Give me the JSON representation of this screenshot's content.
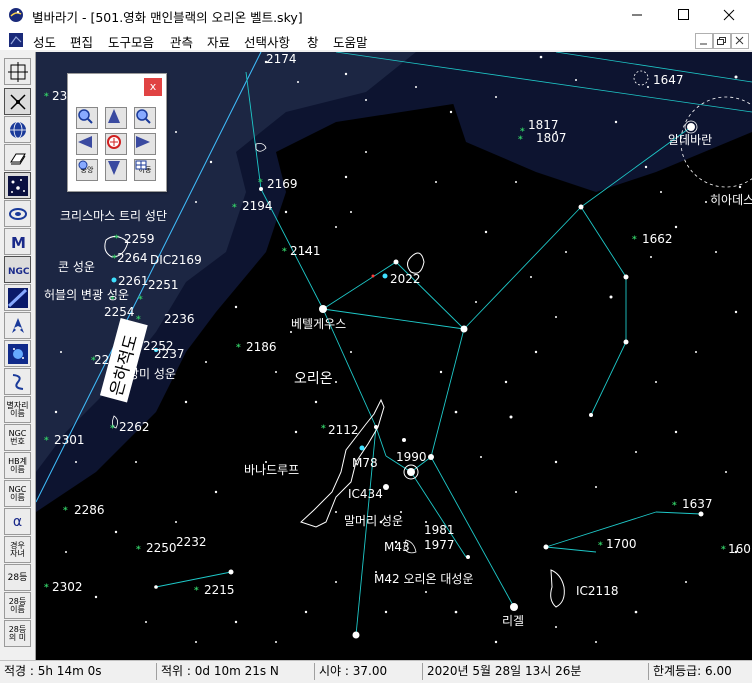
{
  "window": {
    "title": "별바라기 - [501.영화 맨인블랙의 오리온 벨트.sky]"
  },
  "menu": [
    "성도",
    "편집",
    "도구모음",
    "관측",
    "자료",
    "선택사항",
    "창",
    "도움말"
  ],
  "toolbar": {
    "star_name": "별자리\n이름",
    "ngc_number": "NGC\n번호",
    "galaxy_name": "HB계\n이름",
    "ngc_name": "NGC\n이름",
    "alpha": "α",
    "ecliptic_grid": "경우\n자녀",
    "mag28": "28등",
    "mag28_name": "28등\n이름",
    "mag28_meaning": "28등\n의 미"
  },
  "nav_panel": {
    "close": "x",
    "reset_label": "중앙",
    "move_label": "이동"
  },
  "sky": {
    "labels": {
      "christmas_tree": "크리스마스 트리 성단",
      "cone": "콘 성운",
      "hubble_variable": "허블의 변광 성운",
      "betelgeuse": "베텔게우스",
      "orion": "오리온",
      "horsehead": "바나드루프",
      "horsehead_nebula": "말머리 성운",
      "m42": "M42 오리온 대성운",
      "rigel": "리겔",
      "m78": "M78",
      "ic434": "IC434",
      "m43": "M43",
      "ic2118": "IC2118",
      "aldebaran": "알데바란",
      "hyades": "히아데스",
      "rosette": "장미 성운",
      "milky_way": "은하적도"
    },
    "numbers": {
      "n2174": "2174",
      "n23": "23",
      "n2169": "2169",
      "n2194": "2194",
      "n2141": "2141",
      "n2022": "2022",
      "n1817": "1817",
      "n1807": "1807",
      "n1647": "1647",
      "n1662": "1662",
      "n2259": "2259",
      "n2264": "2264",
      "nic2169": "DIC2169",
      "n2261": "2261",
      "n2251": "2251",
      "n2254": "2254",
      "n2236": "2236",
      "n2252": "2252",
      "n22": "22",
      "n2237": "2237",
      "n2186": "2186",
      "n2262": "2262",
      "n2301": "2301",
      "n2112": "2112",
      "n1990": "1990",
      "n2286": "2286",
      "n1981": "1981",
      "n1977": "1977",
      "n2232": "2232",
      "n2250": "2250",
      "n2215": "2215",
      "n2302": "2302",
      "n1637": "1637",
      "n1700": "1700",
      "n160": "160"
    }
  },
  "status": {
    "ra": "적경 :   5h 14m   0s",
    "dec": "적위 :   0d 10m 21s N",
    "fov": "시야 : 37.00",
    "datetime": "2020년  5월 28일 13시 26분",
    "limit_mag": "한계등급:  6.00"
  },
  "colors": {
    "sky_bg": "#000000",
    "milky_way_dark": "#0d1430",
    "milky_way_mid": "#1c2643",
    "constellation_line": "#1ec8c8",
    "ecliptic_line": "#40c0ff",
    "nebula_green": "#33cc66"
  }
}
